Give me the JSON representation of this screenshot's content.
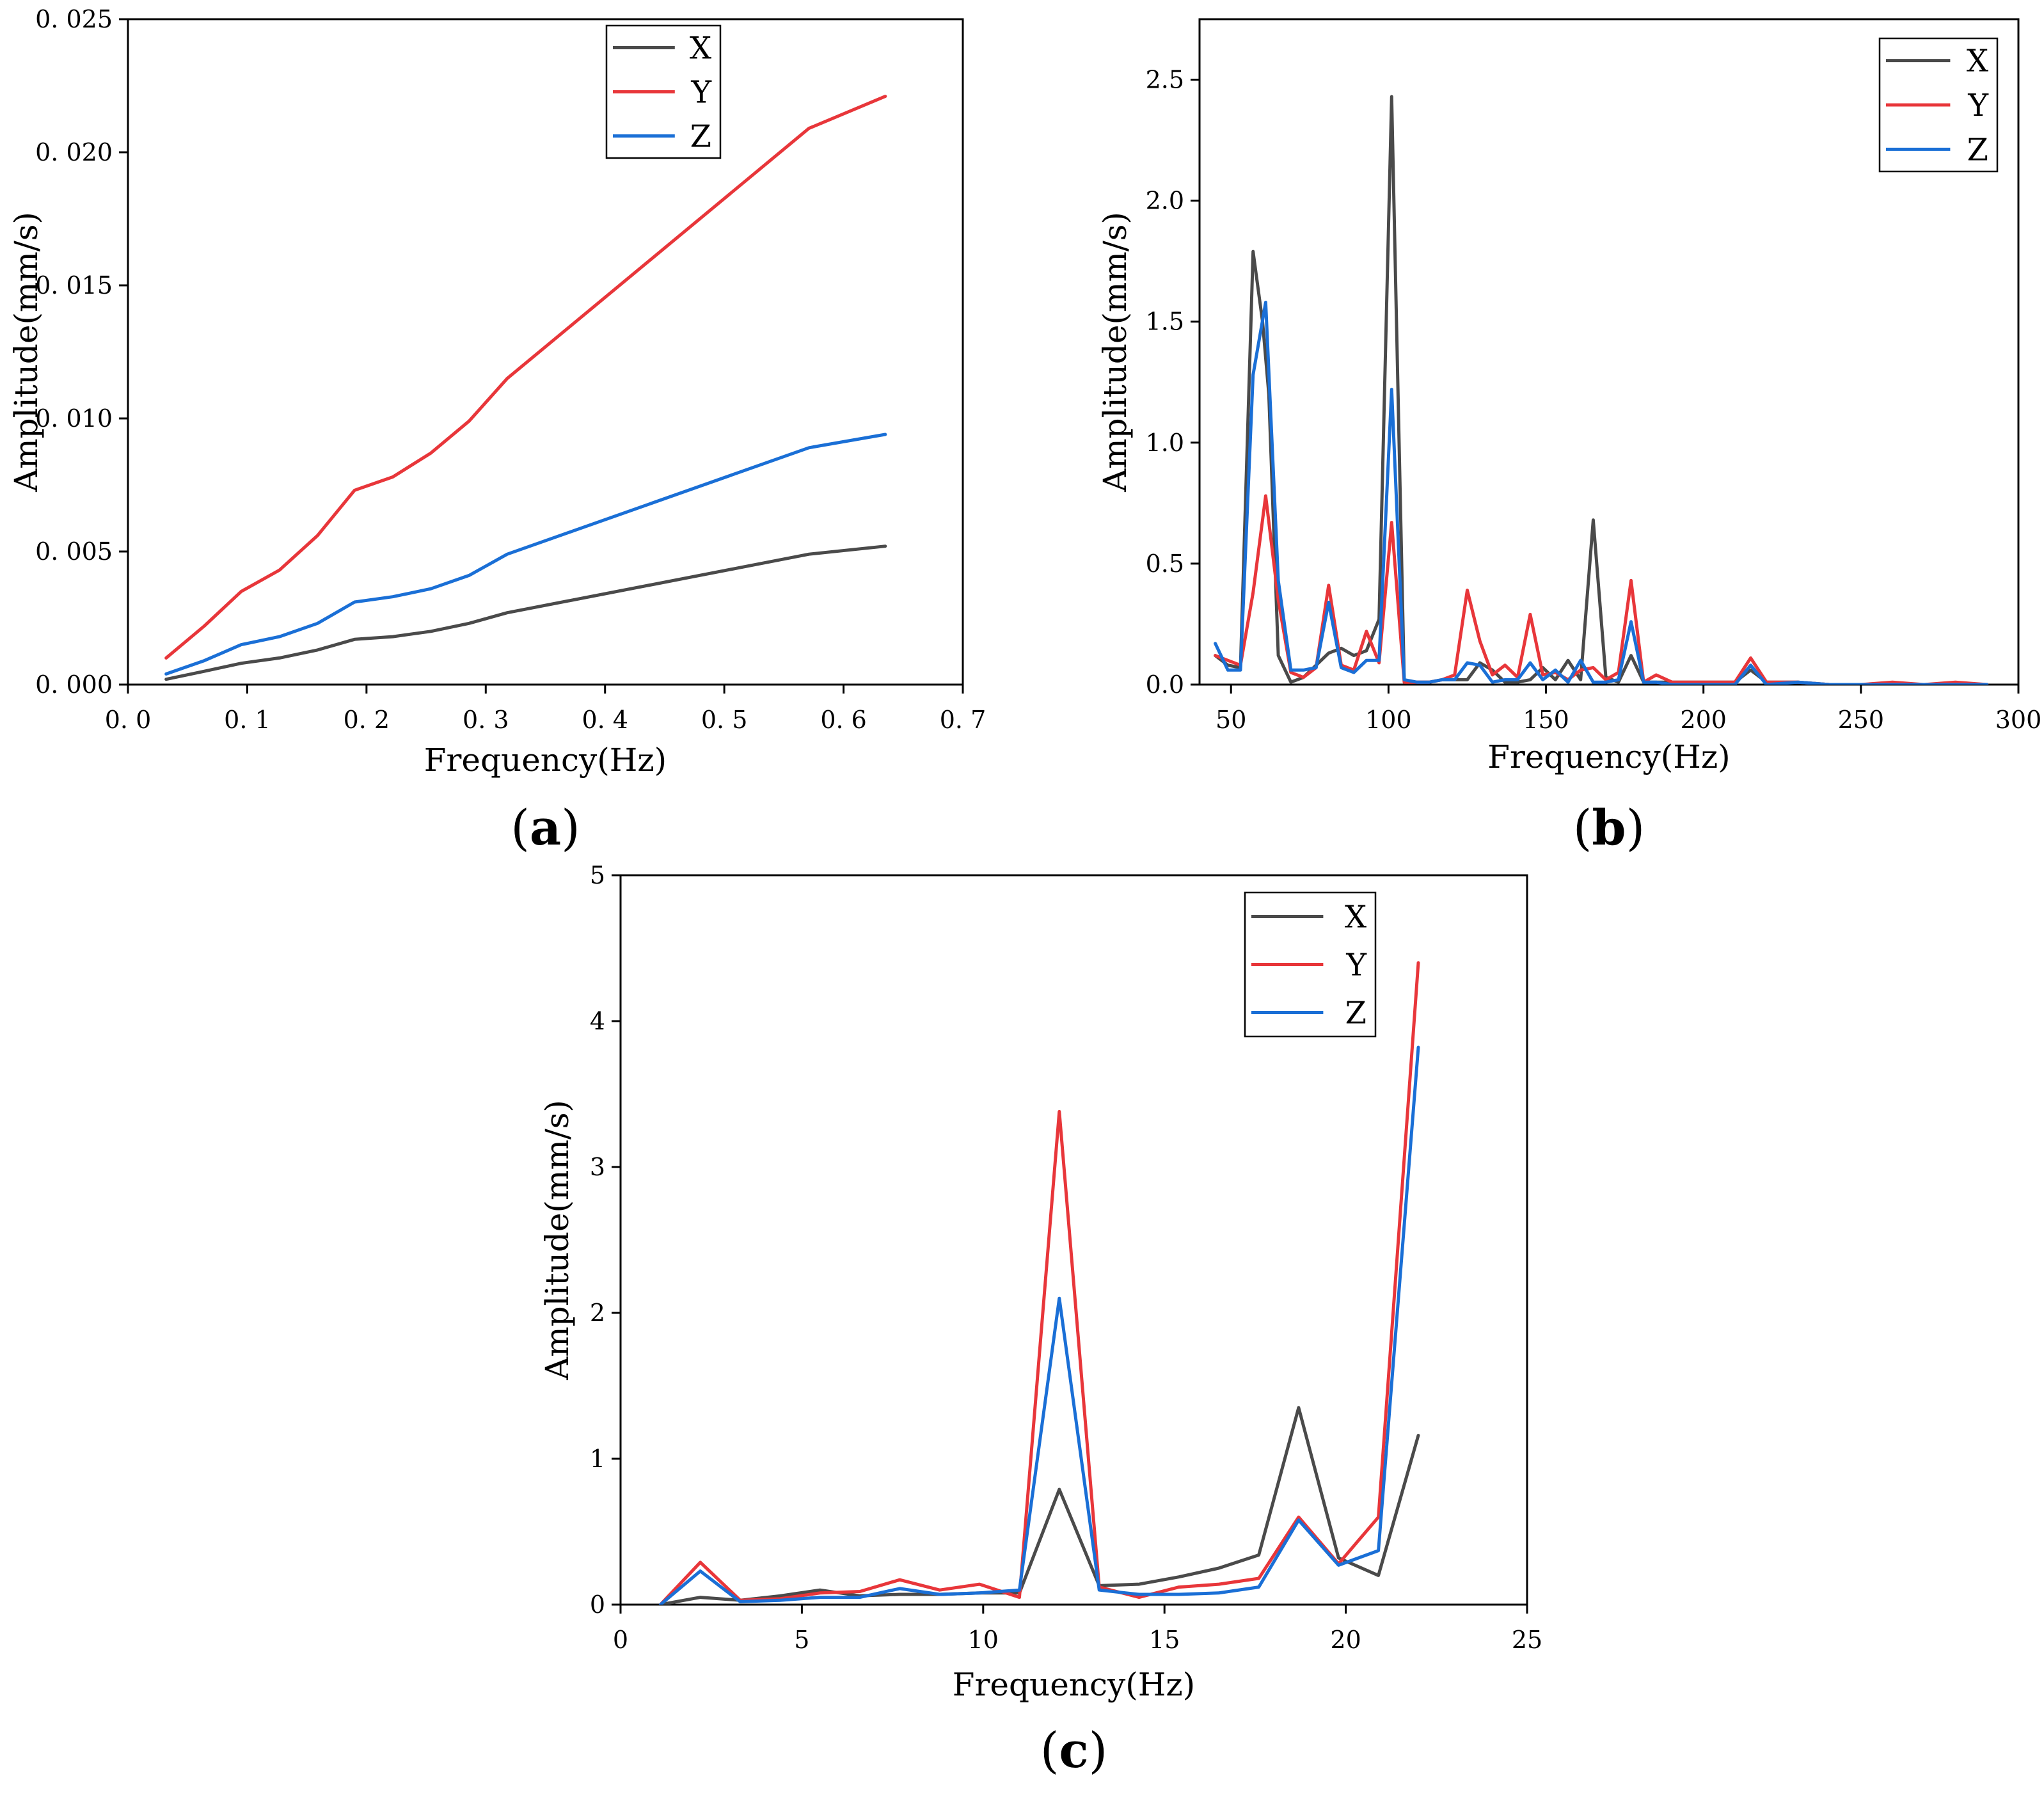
{
  "colors": {
    "X": "#4a4a4a",
    "Y": "#e8363a",
    "Z": "#1a6fd6"
  },
  "chart_data": [
    {
      "id": "a",
      "type": "line",
      "panel_label": "a",
      "xlabel": "Frequency(Hz)",
      "ylabel": "Amplitude(mm/s)",
      "xlim": [
        0.0,
        0.7
      ],
      "ylim": [
        0.0,
        0.025
      ],
      "xticks": [
        0.0,
        0.1,
        0.2,
        0.3,
        0.4,
        0.5,
        0.6,
        0.7
      ],
      "xtick_labels": [
        "0. 0",
        "0. 1",
        "0. 2",
        "0. 3",
        "0. 4",
        "0. 5",
        "0. 6",
        "0. 7"
      ],
      "yticks": [
        0.0,
        0.005,
        0.01,
        0.015,
        0.02,
        0.025
      ],
      "ytick_labels": [
        "0. 000",
        "0. 005",
        "0. 010",
        "0. 015",
        "0. 020",
        "0. 025"
      ],
      "legend": [
        "X",
        "Y",
        "Z"
      ],
      "legend_position": "top-center",
      "series": [
        {
          "name": "X",
          "x": [
            0.032,
            0.064,
            0.095,
            0.127,
            0.159,
            0.19,
            0.222,
            0.254,
            0.286,
            0.318,
            0.571,
            0.635
          ],
          "values": [
            0.0002,
            0.0005,
            0.0008,
            0.001,
            0.0013,
            0.0017,
            0.0018,
            0.002,
            0.0023,
            0.0027,
            0.0049,
            0.0052
          ]
        },
        {
          "name": "Y",
          "x": [
            0.032,
            0.064,
            0.095,
            0.127,
            0.159,
            0.19,
            0.222,
            0.254,
            0.286,
            0.318,
            0.571,
            0.635
          ],
          "values": [
            0.001,
            0.0022,
            0.0035,
            0.0043,
            0.0056,
            0.0073,
            0.0078,
            0.0087,
            0.0099,
            0.0115,
            0.0209,
            0.0221
          ]
        },
        {
          "name": "Z",
          "x": [
            0.032,
            0.064,
            0.095,
            0.127,
            0.159,
            0.19,
            0.222,
            0.254,
            0.286,
            0.318,
            0.571,
            0.635
          ],
          "values": [
            0.0004,
            0.0009,
            0.0015,
            0.0018,
            0.0023,
            0.0031,
            0.0033,
            0.0036,
            0.0041,
            0.0049,
            0.0089,
            0.0094
          ]
        }
      ]
    },
    {
      "id": "b",
      "type": "line",
      "panel_label": "b",
      "xlabel": "Frequency(Hz)",
      "ylabel": "Amplitude(mm/s)",
      "xlim": [
        40,
        300
      ],
      "ylim": [
        0.0,
        2.75
      ],
      "xticks": [
        50,
        100,
        150,
        200,
        250,
        300
      ],
      "xtick_labels": [
        "50",
        "100",
        "150",
        "200",
        "250",
        "300"
      ],
      "yticks": [
        0.0,
        0.5,
        1.0,
        1.5,
        2.0,
        2.5
      ],
      "ytick_labels": [
        "0.0",
        "0.5",
        "1.0",
        "1.5",
        "2.0",
        "2.5"
      ],
      "legend": [
        "X",
        "Y",
        "Z"
      ],
      "legend_position": "top-right",
      "series": [
        {
          "name": "X",
          "x": [
            45,
            49,
            53,
            57,
            60,
            62,
            65,
            69,
            73,
            77,
            81,
            85,
            89,
            93,
            97,
            101,
            105,
            109,
            113,
            117,
            121,
            125,
            129,
            133,
            137,
            141,
            145,
            149,
            153,
            157,
            161,
            165,
            169,
            173,
            177,
            181,
            185,
            190,
            200,
            210,
            215,
            220,
            230,
            240,
            250,
            260,
            270,
            280,
            290
          ],
          "values": [
            0.12,
            0.08,
            0.07,
            1.79,
            1.5,
            1.2,
            0.12,
            0.01,
            0.03,
            0.08,
            0.13,
            0.15,
            0.12,
            0.14,
            0.27,
            2.43,
            0.01,
            0.01,
            0.01,
            0.02,
            0.02,
            0.02,
            0.09,
            0.06,
            0.01,
            0.01,
            0.02,
            0.07,
            0.02,
            0.1,
            0.02,
            0.68,
            0.03,
            0.01,
            0.12,
            0.01,
            0.01,
            0.01,
            0.01,
            0.01,
            0.06,
            0.01,
            0.01,
            0.0,
            0.0,
            0.0,
            0.0,
            0.0,
            0.0
          ]
        },
        {
          "name": "Y",
          "x": [
            45,
            49,
            53,
            57,
            61,
            65,
            69,
            73,
            77,
            81,
            85,
            89,
            93,
            97,
            101,
            105,
            109,
            113,
            117,
            121,
            125,
            129,
            133,
            137,
            141,
            145,
            149,
            153,
            157,
            161,
            165,
            169,
            173,
            177,
            181,
            185,
            190,
            200,
            210,
            215,
            220,
            230,
            240,
            250,
            260,
            270,
            280,
            290
          ],
          "values": [
            0.12,
            0.1,
            0.08,
            0.38,
            0.78,
            0.35,
            0.05,
            0.03,
            0.07,
            0.41,
            0.08,
            0.06,
            0.22,
            0.09,
            0.67,
            0.01,
            0.01,
            0.01,
            0.02,
            0.04,
            0.39,
            0.18,
            0.04,
            0.08,
            0.03,
            0.29,
            0.04,
            0.05,
            0.02,
            0.06,
            0.07,
            0.02,
            0.05,
            0.43,
            0.01,
            0.04,
            0.01,
            0.01,
            0.01,
            0.11,
            0.01,
            0.01,
            0.0,
            0.0,
            0.01,
            0.0,
            0.01,
            0.0
          ]
        },
        {
          "name": "Z",
          "x": [
            45,
            49,
            53,
            57,
            61,
            65,
            69,
            73,
            77,
            81,
            85,
            89,
            93,
            97,
            101,
            105,
            109,
            113,
            117,
            121,
            125,
            129,
            133,
            137,
            141,
            145,
            149,
            153,
            157,
            161,
            165,
            169,
            173,
            177,
            181,
            185,
            190,
            200,
            210,
            215,
            220,
            230,
            240,
            250,
            260,
            270,
            280,
            290
          ],
          "values": [
            0.17,
            0.06,
            0.06,
            1.28,
            1.58,
            0.43,
            0.06,
            0.06,
            0.07,
            0.34,
            0.07,
            0.05,
            0.1,
            0.1,
            1.22,
            0.02,
            0.01,
            0.01,
            0.02,
            0.02,
            0.09,
            0.08,
            0.01,
            0.02,
            0.02,
            0.09,
            0.02,
            0.06,
            0.01,
            0.1,
            0.01,
            0.01,
            0.02,
            0.26,
            0.01,
            0.01,
            0.0,
            0.0,
            0.0,
            0.08,
            0.0,
            0.01,
            0.0,
            0.0,
            0.0,
            0.0,
            0.0,
            0.0
          ]
        }
      ]
    },
    {
      "id": "c",
      "type": "line",
      "panel_label": "c",
      "xlabel": "Frequency(Hz)",
      "ylabel": "Amplitude(mm/s)",
      "xlim": [
        0,
        25
      ],
      "ylim": [
        0,
        5
      ],
      "xticks": [
        0,
        5,
        10,
        15,
        20,
        25
      ],
      "xtick_labels": [
        "0",
        "5",
        "10",
        "15",
        "20",
        "25"
      ],
      "yticks": [
        0,
        1,
        2,
        3,
        4,
        5
      ],
      "ytick_labels": [
        "0",
        "1",
        "2",
        "3",
        "4",
        "5"
      ],
      "legend": [
        "X",
        "Y",
        "Z"
      ],
      "legend_position": "top-right",
      "series": [
        {
          "name": "X",
          "x": [
            1.1,
            2.2,
            3.3,
            4.4,
            5.5,
            6.6,
            7.7,
            8.8,
            9.9,
            11.0,
            12.1,
            13.2,
            14.3,
            15.4,
            16.5,
            17.6,
            18.7,
            19.8,
            20.9,
            22.0
          ],
          "values": [
            0.0,
            0.05,
            0.03,
            0.06,
            0.1,
            0.06,
            0.07,
            0.07,
            0.08,
            0.08,
            0.79,
            0.13,
            0.14,
            0.19,
            0.25,
            0.34,
            1.35,
            0.32,
            0.2,
            1.16
          ]
        },
        {
          "name": "Y",
          "x": [
            1.1,
            2.2,
            3.3,
            4.4,
            5.5,
            6.6,
            7.7,
            8.8,
            9.9,
            11.0,
            12.1,
            13.2,
            14.3,
            15.4,
            16.5,
            17.6,
            18.7,
            19.8,
            20.9,
            22.0
          ],
          "values": [
            0.0,
            0.29,
            0.03,
            0.04,
            0.08,
            0.09,
            0.17,
            0.1,
            0.14,
            0.05,
            3.38,
            0.12,
            0.05,
            0.12,
            0.14,
            0.18,
            0.6,
            0.28,
            0.6,
            4.4
          ]
        },
        {
          "name": "Z",
          "x": [
            1.1,
            2.2,
            3.3,
            4.4,
            5.5,
            6.6,
            7.7,
            8.8,
            9.9,
            11.0,
            12.1,
            13.2,
            14.3,
            15.4,
            16.5,
            17.6,
            18.7,
            19.8,
            20.9,
            22.0
          ],
          "values": [
            0.0,
            0.23,
            0.02,
            0.03,
            0.05,
            0.05,
            0.11,
            0.07,
            0.08,
            0.1,
            2.1,
            0.1,
            0.07,
            0.07,
            0.08,
            0.12,
            0.58,
            0.27,
            0.37,
            3.82
          ]
        }
      ]
    }
  ]
}
